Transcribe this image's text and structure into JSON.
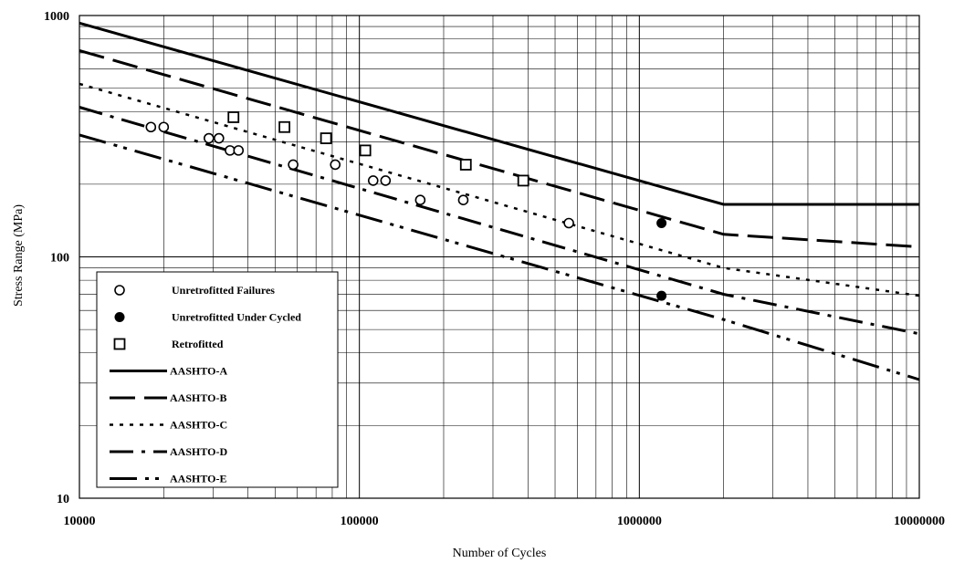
{
  "chart_data": {
    "type": "scatter",
    "title": "",
    "xlabel": "Number of Cycles",
    "ylabel": "Stress Range (MPa)",
    "xscale": "log",
    "yscale": "log",
    "xlim": [
      10000,
      10000000
    ],
    "ylim": [
      10,
      1000
    ],
    "x_ticks": [
      10000,
      100000,
      1000000,
      10000000
    ],
    "x_tick_labels": [
      "10000",
      "100000",
      "1000000",
      "10000000"
    ],
    "y_ticks": [
      10,
      100,
      1000
    ],
    "y_tick_labels": [
      "10",
      "100",
      "1000"
    ],
    "grid": true,
    "legend_position": "lower-left",
    "series": [
      {
        "name": "Unretrofitted Failures",
        "kind": "points",
        "marker": "open-circle",
        "points": [
          [
            18000,
            345
          ],
          [
            20000,
            345
          ],
          [
            29000,
            310
          ],
          [
            31500,
            310
          ],
          [
            34500,
            276
          ],
          [
            37000,
            276
          ],
          [
            58000,
            241
          ],
          [
            82000,
            241
          ],
          [
            112000,
            207
          ],
          [
            124000,
            207
          ],
          [
            165000,
            172
          ],
          [
            235000,
            172
          ],
          [
            560000,
            138
          ]
        ]
      },
      {
        "name": "Unretrofitted Under Cycled",
        "kind": "points",
        "marker": "filled-circle",
        "points": [
          [
            1200000,
            138
          ],
          [
            1200000,
            69
          ]
        ]
      },
      {
        "name": "Retrofitted",
        "kind": "points",
        "marker": "open-square",
        "points": [
          [
            35500,
            379
          ],
          [
            54000,
            345
          ],
          [
            76000,
            310
          ],
          [
            105000,
            276
          ],
          [
            240000,
            241
          ],
          [
            385000,
            207
          ]
        ]
      },
      {
        "name": "AASHTO-A",
        "kind": "line",
        "dash": "solid",
        "points": [
          [
            10000,
            930
          ],
          [
            2000000,
            165
          ],
          [
            10000000,
            165
          ]
        ]
      },
      {
        "name": "AASHTO-B",
        "kind": "line",
        "dash": "long-dash",
        "points": [
          [
            10000,
            716
          ],
          [
            2000000,
            124
          ],
          [
            10000000,
            110
          ]
        ]
      },
      {
        "name": "AASHTO-C",
        "kind": "line",
        "dash": "dotted",
        "points": [
          [
            10000,
            521
          ],
          [
            2000000,
            90
          ],
          [
            10000000,
            69
          ]
        ]
      },
      {
        "name": "AASHTO-D",
        "kind": "line",
        "dash": "dash-dot",
        "points": [
          [
            10000,
            417
          ],
          [
            2000000,
            70
          ],
          [
            10000000,
            48
          ]
        ]
      },
      {
        "name": "AASHTO-E",
        "kind": "line",
        "dash": "dash-dot-dot",
        "points": [
          [
            10000,
            320
          ],
          [
            2000000,
            55
          ],
          [
            10000000,
            31
          ]
        ]
      }
    ]
  }
}
